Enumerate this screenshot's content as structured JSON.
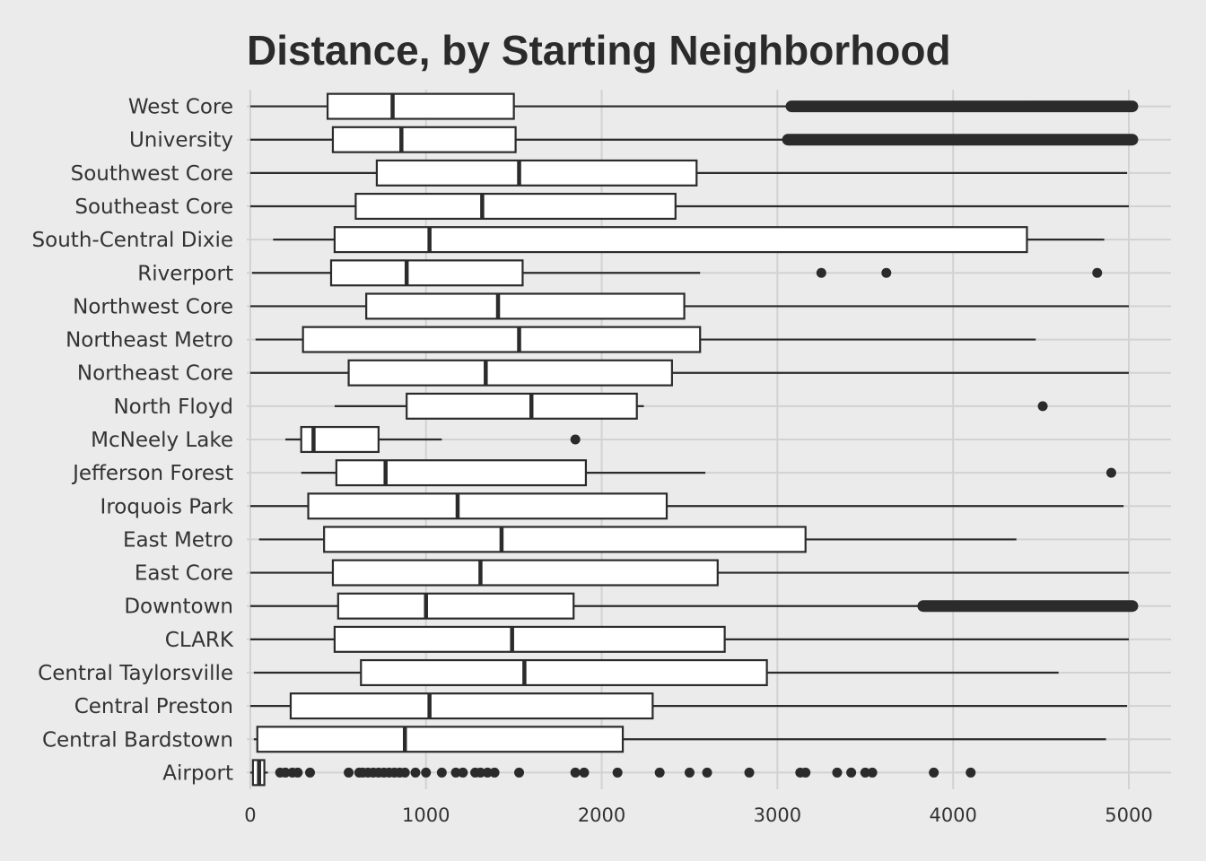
{
  "chart_data": {
    "type": "boxplot",
    "title": "Distance, by Starting Neighborhood",
    "xlabel": "",
    "ylabel": "",
    "orientation": "horizontal",
    "xlim": [
      -20,
      5240
    ],
    "x_ticks": [
      0,
      1000,
      2000,
      3000,
      4000,
      5000
    ],
    "x_tick_labels": [
      "0",
      "1000",
      "2000",
      "3000",
      "4000",
      "5000"
    ],
    "grid": true,
    "colors": {
      "background": "#ebebeb",
      "grid": "#d2d2d2",
      "box_fill": "#ffffff",
      "line": "#2b2b2b"
    },
    "categories": [
      "West Core",
      "University",
      "Southwest Core",
      "Southeast Core",
      "South-Central Dixie",
      "Riverport",
      "Northwest Core",
      "Northeast Metro",
      "Northeast Core",
      "North Floyd",
      "McNeely Lake",
      "Jefferson Forest",
      "Iroquois Park",
      "East Metro",
      "East Core",
      "Downtown",
      "CLARK",
      "Central Taylorsville",
      "Central Preston",
      "Central Bardstown",
      "Airport"
    ],
    "boxes": [
      {
        "name": "West Core",
        "whisker_low": 0,
        "q1": 440,
        "median": 810,
        "q3": 1500,
        "whisker_high": 3080,
        "outliers": [],
        "outlier_band": [
          3080,
          5020
        ]
      },
      {
        "name": "University",
        "whisker_low": 0,
        "q1": 470,
        "median": 860,
        "q3": 1510,
        "whisker_high": 3060,
        "outliers": [],
        "outlier_band": [
          3060,
          5020
        ]
      },
      {
        "name": "Southwest Core",
        "whisker_low": 0,
        "q1": 720,
        "median": 1530,
        "q3": 2540,
        "whisker_high": 4990,
        "outliers": []
      },
      {
        "name": "Southeast Core",
        "whisker_low": 0,
        "q1": 600,
        "median": 1320,
        "q3": 2420,
        "whisker_high": 5000,
        "outliers": []
      },
      {
        "name": "South-Central Dixie",
        "whisker_low": 130,
        "q1": 480,
        "median": 1020,
        "q3": 4420,
        "whisker_high": 4860,
        "outliers": []
      },
      {
        "name": "Riverport",
        "whisker_low": 10,
        "q1": 460,
        "median": 890,
        "q3": 1550,
        "whisker_high": 2560,
        "outliers": [
          3250,
          3620,
          4820
        ]
      },
      {
        "name": "Northwest Core",
        "whisker_low": 0,
        "q1": 660,
        "median": 1410,
        "q3": 2470,
        "whisker_high": 5000,
        "outliers": []
      },
      {
        "name": "Northeast Metro",
        "whisker_low": 30,
        "q1": 300,
        "median": 1530,
        "q3": 2560,
        "whisker_high": 4470,
        "outliers": []
      },
      {
        "name": "Northeast Core",
        "whisker_low": 0,
        "q1": 560,
        "median": 1340,
        "q3": 2400,
        "whisker_high": 5000,
        "outliers": []
      },
      {
        "name": "North Floyd",
        "whisker_low": 480,
        "q1": 890,
        "median": 1600,
        "q3": 2200,
        "whisker_high": 2240,
        "outliers": [
          4510
        ]
      },
      {
        "name": "McNeely Lake",
        "whisker_low": 200,
        "q1": 290,
        "median": 360,
        "q3": 730,
        "whisker_high": 1090,
        "outliers": [
          1850
        ]
      },
      {
        "name": "Jefferson Forest",
        "whisker_low": 290,
        "q1": 490,
        "median": 770,
        "q3": 1910,
        "whisker_high": 2590,
        "outliers": [
          4900
        ]
      },
      {
        "name": "Iroquois Park",
        "whisker_low": 0,
        "q1": 330,
        "median": 1180,
        "q3": 2370,
        "whisker_high": 4970,
        "outliers": []
      },
      {
        "name": "East Metro",
        "whisker_low": 50,
        "q1": 420,
        "median": 1430,
        "q3": 3160,
        "whisker_high": 4360,
        "outliers": []
      },
      {
        "name": "East Core",
        "whisker_low": 0,
        "q1": 470,
        "median": 1310,
        "q3": 2660,
        "whisker_high": 5000,
        "outliers": []
      },
      {
        "name": "Downtown",
        "whisker_low": 0,
        "q1": 500,
        "median": 1000,
        "q3": 1840,
        "whisker_high": 3830,
        "outliers": [],
        "outlier_band": [
          3830,
          5020
        ]
      },
      {
        "name": "CLARK",
        "whisker_low": 0,
        "q1": 480,
        "median": 1490,
        "q3": 2700,
        "whisker_high": 5000,
        "outliers": []
      },
      {
        "name": "Central Taylorsville",
        "whisker_low": 20,
        "q1": 630,
        "median": 1560,
        "q3": 2940,
        "whisker_high": 4600,
        "outliers": []
      },
      {
        "name": "Central Preston",
        "whisker_low": 0,
        "q1": 230,
        "median": 1020,
        "q3": 2290,
        "whisker_high": 4990,
        "outliers": []
      },
      {
        "name": "Central Bardstown",
        "whisker_low": 20,
        "q1": 40,
        "median": 880,
        "q3": 2120,
        "whisker_high": 4870,
        "outliers": []
      },
      {
        "name": "Airport",
        "whisker_low": 0,
        "q1": 15,
        "median": 50,
        "q3": 80,
        "whisker_high": 100,
        "outliers": [
          170,
          200,
          240,
          270,
          340,
          560,
          620,
          640,
          670,
          700,
          730,
          760,
          790,
          820,
          850,
          880,
          940,
          1000,
          1090,
          1170,
          1210,
          1280,
          1310,
          1350,
          1390,
          1530,
          1850,
          1900,
          2090,
          2330,
          2500,
          2600,
          2840,
          3130,
          3160,
          3340,
          3420,
          3500,
          3540,
          3890,
          4100
        ]
      }
    ]
  }
}
